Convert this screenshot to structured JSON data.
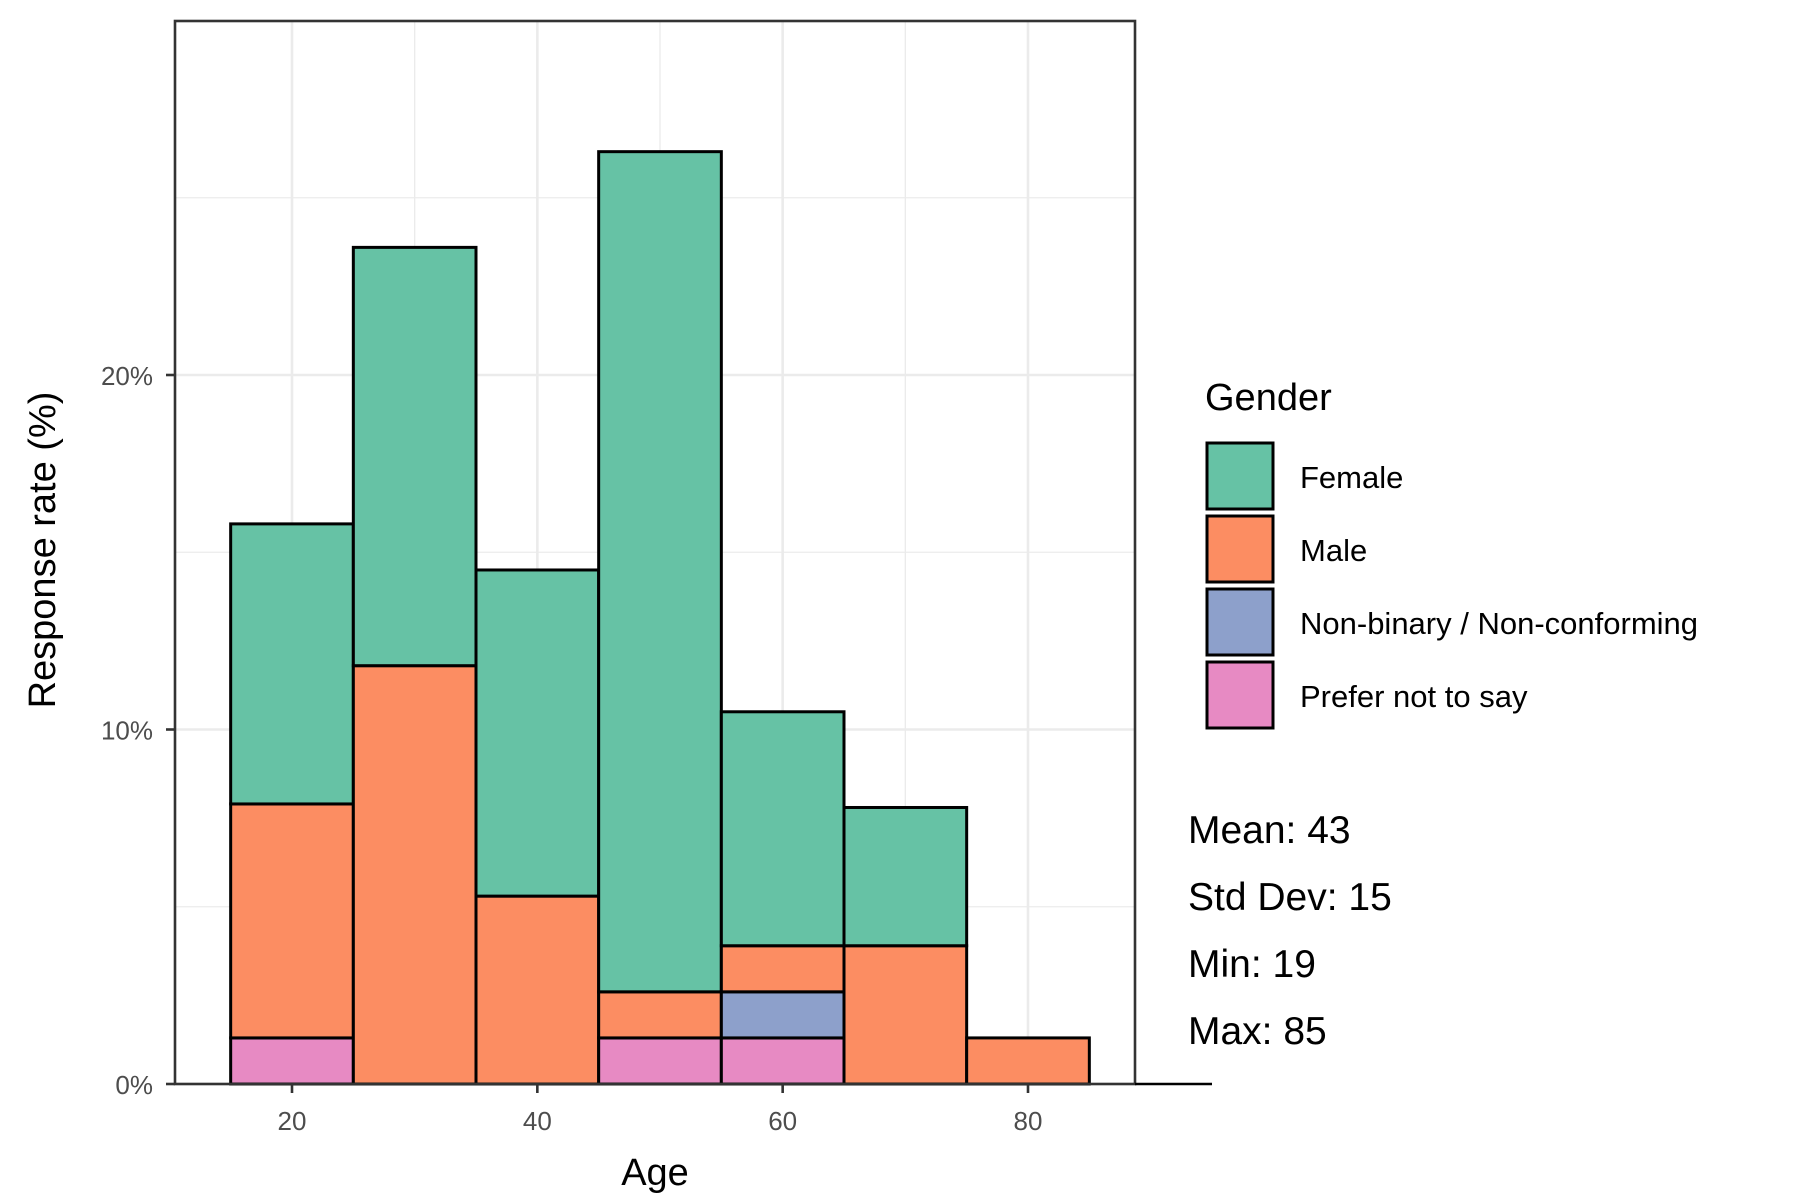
{
  "chart_data": {
    "type": "bar",
    "subtype": "stacked-histogram",
    "title": "",
    "xlabel": "Age",
    "ylabel": "Response rate (%)",
    "xlim": [
      10,
      88
    ],
    "ylim": [
      0,
      30
    ],
    "x_ticks": [
      20,
      40,
      60,
      80
    ],
    "x_tick_labels": [
      "20",
      "40",
      "60",
      "80"
    ],
    "y_ticks": [
      0,
      10,
      20
    ],
    "y_tick_labels": [
      "0%",
      "10%",
      "20%"
    ],
    "grid": true,
    "bin_width": 10,
    "bins": [
      {
        "x0": 15,
        "x1": 25
      },
      {
        "x0": 25,
        "x1": 35
      },
      {
        "x0": 35,
        "x1": 45
      },
      {
        "x0": 45,
        "x1": 55
      },
      {
        "x0": 55,
        "x1": 65
      },
      {
        "x0": 65,
        "x1": 75
      },
      {
        "x0": 75,
        "x1": 85
      }
    ],
    "stack_order_bottom_to_top": [
      "Prefer not to say",
      "Non-binary / Non-conforming",
      "Male",
      "Female"
    ],
    "series": [
      {
        "name": "Female",
        "color": "#66c2a5",
        "values": [
          7.9,
          11.8,
          9.2,
          23.7,
          6.6,
          3.9,
          0
        ]
      },
      {
        "name": "Male",
        "color": "#fc8d62",
        "values": [
          6.6,
          11.8,
          5.3,
          1.3,
          1.3,
          3.9,
          1.3
        ]
      },
      {
        "name": "Non-binary / Non-conforming",
        "color": "#8da0cb",
        "values": [
          0,
          0,
          0,
          0,
          1.3,
          0,
          0
        ]
      },
      {
        "name": "Prefer not to say",
        "color": "#e78ac3",
        "values": [
          1.3,
          0,
          0,
          1.3,
          1.3,
          0,
          0
        ]
      }
    ],
    "legend": {
      "title": "Gender",
      "placement": "right",
      "items": [
        "Female",
        "Male",
        "Non-binary / Non-conforming",
        "Prefer not to say"
      ]
    },
    "annotations": [
      "Mean: 43",
      "Std Dev: 15",
      "Min: 19",
      "Max: 85"
    ]
  }
}
